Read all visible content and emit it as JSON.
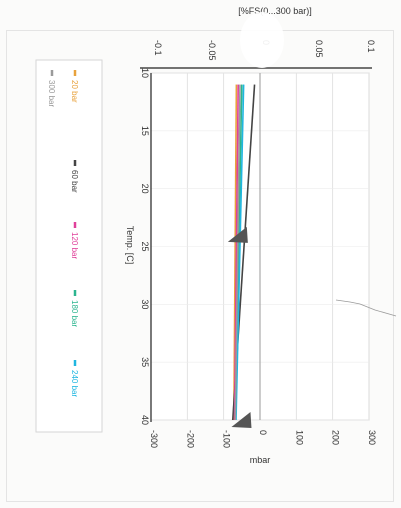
{
  "chart_data": {
    "type": "line",
    "orientation": "rotated-90-clockwise",
    "xlabel": "Temp. [C]",
    "ylabel_left": "mbar",
    "ylabel_right": "[%FS(0...300 bar)]",
    "x_ticks": [
      "10",
      "15",
      "20",
      "25",
      "30",
      "35",
      "40"
    ],
    "y_ticks_left": [
      "-300",
      "-200",
      "-100",
      "0",
      "100",
      "200",
      "300"
    ],
    "y_ticks_right": [
      "-0.1",
      "-0.05",
      "0",
      "0.05",
      "0.1"
    ],
    "xlim": [
      10,
      40
    ],
    "ylim_left": [
      -300,
      300
    ],
    "grid": true,
    "legend_placement": "left",
    "x": [
      11,
      40
    ],
    "series": [
      {
        "name": "20 bar",
        "color": "#e8a23c",
        "values": [
          -65,
          -72
        ]
      },
      {
        "name": "60 bar",
        "color": "#444444",
        "values": [
          -15,
          -75
        ]
      },
      {
        "name": "120 bar",
        "color": "#e0409a",
        "values": [
          -60,
          -70
        ]
      },
      {
        "name": "180 bar",
        "color": "#2cb58f",
        "values": [
          -50,
          -68
        ]
      },
      {
        "name": "240 bar",
        "color": "#1fb6e0",
        "values": [
          -45,
          -66
        ]
      },
      {
        "name": "300 bar",
        "color": "#9a9a9a",
        "values": [
          -55,
          -68
        ]
      }
    ],
    "markers": [
      {
        "x": 24,
        "y": -50,
        "color": "#555555"
      },
      {
        "x": 40,
        "y": -40,
        "color": "#555555"
      }
    ]
  }
}
